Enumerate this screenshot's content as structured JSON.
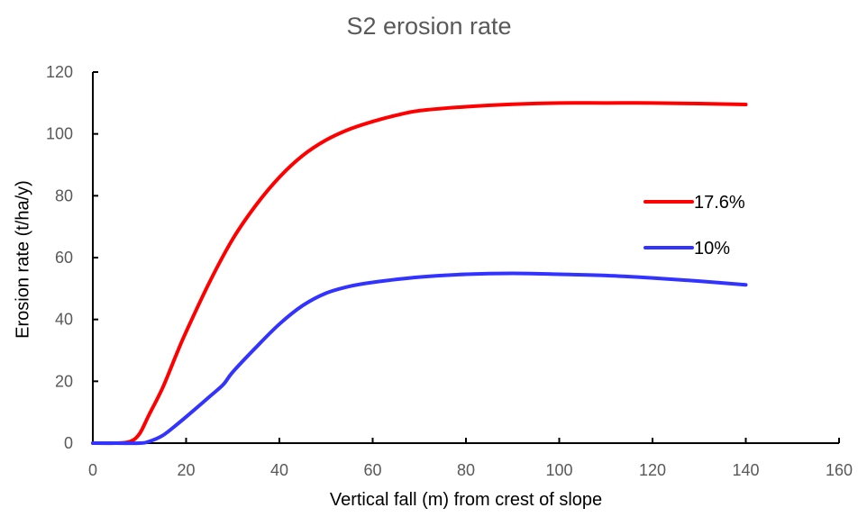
{
  "chart_data": {
    "type": "line",
    "title": "S2 erosion rate",
    "xlabel": "Vertical fall (m) from crest of slope",
    "ylabel": "Erosion rate (t/ha/y)",
    "xlim": [
      0,
      160
    ],
    "ylim": [
      0,
      120
    ],
    "x_ticks": [
      "0",
      "20",
      "40",
      "60",
      "80",
      "100",
      "120",
      "140",
      "160"
    ],
    "y_ticks": [
      "0",
      "20",
      "40",
      "60",
      "80",
      "100",
      "120"
    ],
    "grid": false,
    "legend": "right",
    "series": [
      {
        "name": "17.6%",
        "color": "#ff0000",
        "points": [
          [
            0,
            0
          ],
          [
            5,
            0
          ],
          [
            8,
            0.5
          ],
          [
            10,
            3
          ],
          [
            12,
            9
          ],
          [
            15,
            18
          ],
          [
            18,
            29
          ],
          [
            20,
            36
          ],
          [
            25,
            52
          ],
          [
            30,
            66
          ],
          [
            35,
            77
          ],
          [
            40,
            86
          ],
          [
            45,
            93
          ],
          [
            50,
            98
          ],
          [
            55,
            101.5
          ],
          [
            60,
            104
          ],
          [
            65,
            106
          ],
          [
            70,
            107.5
          ],
          [
            80,
            108.8
          ],
          [
            90,
            109.6
          ],
          [
            100,
            110
          ],
          [
            110,
            110
          ],
          [
            120,
            110
          ],
          [
            130,
            109.8
          ],
          [
            140,
            109.5
          ]
        ]
      },
      {
        "name": "10%",
        "color": "#3333ff",
        "points": [
          [
            0,
            0
          ],
          [
            5,
            0
          ],
          [
            10,
            0
          ],
          [
            12,
            0.5
          ],
          [
            15,
            2.5
          ],
          [
            18,
            6
          ],
          [
            20,
            8.5
          ],
          [
            25,
            15
          ],
          [
            28,
            19
          ],
          [
            30,
            23
          ],
          [
            35,
            31
          ],
          [
            40,
            38.5
          ],
          [
            45,
            44.5
          ],
          [
            50,
            48.5
          ],
          [
            55,
            50.7
          ],
          [
            60,
            52
          ],
          [
            70,
            53.7
          ],
          [
            80,
            54.6
          ],
          [
            90,
            54.9
          ],
          [
            100,
            54.6
          ],
          [
            110,
            54.2
          ],
          [
            120,
            53.4
          ],
          [
            130,
            52.4
          ],
          [
            140,
            51.2
          ]
        ]
      }
    ]
  }
}
